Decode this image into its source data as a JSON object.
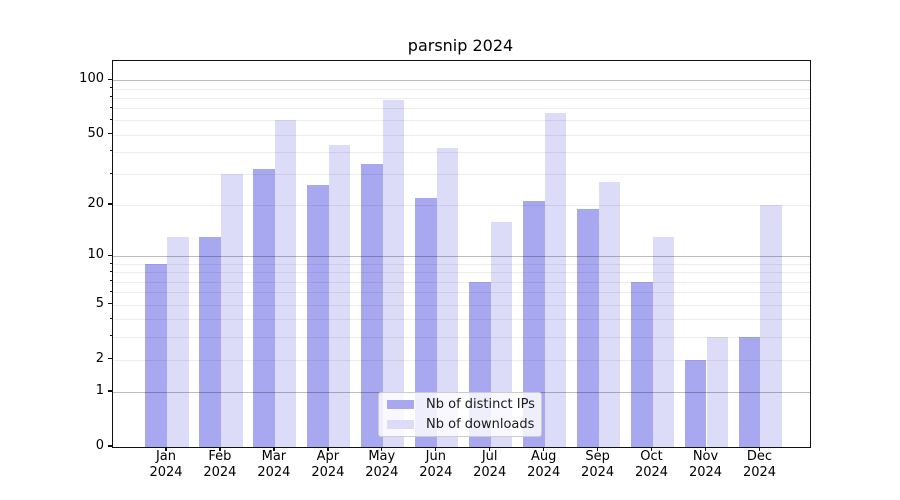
{
  "chart_data": {
    "type": "bar",
    "title": "parsnip 2024",
    "categories": [
      "Jan",
      "Feb",
      "Mar",
      "Apr",
      "May",
      "Jun",
      "Jul",
      "Aug",
      "Sep",
      "Oct",
      "Nov",
      "Dec"
    ],
    "category_year": "2024",
    "series": [
      {
        "name": "Nb of distinct IPs",
        "color": "#a8a8f0",
        "values": [
          9,
          13,
          32,
          26,
          34,
          22,
          7,
          21,
          19,
          7,
          2,
          3
        ]
      },
      {
        "name": "Nb of downloads",
        "color": "#dcdcf8",
        "values": [
          13,
          30,
          60,
          44,
          78,
          42,
          16,
          66,
          27,
          13,
          3,
          20
        ]
      }
    ],
    "yscale": "log1p",
    "ylim": [
      0,
      128
    ],
    "yticks": [
      0,
      1,
      2,
      5,
      10,
      20,
      50,
      100
    ],
    "decade_gridlines": [
      1,
      10,
      100
    ],
    "minor_gridlines": [
      3,
      4,
      6,
      7,
      8,
      9,
      30,
      40,
      60,
      70,
      80,
      90
    ],
    "grid": true,
    "legend_position": "lower-center",
    "xlabel": "",
    "ylabel": ""
  }
}
